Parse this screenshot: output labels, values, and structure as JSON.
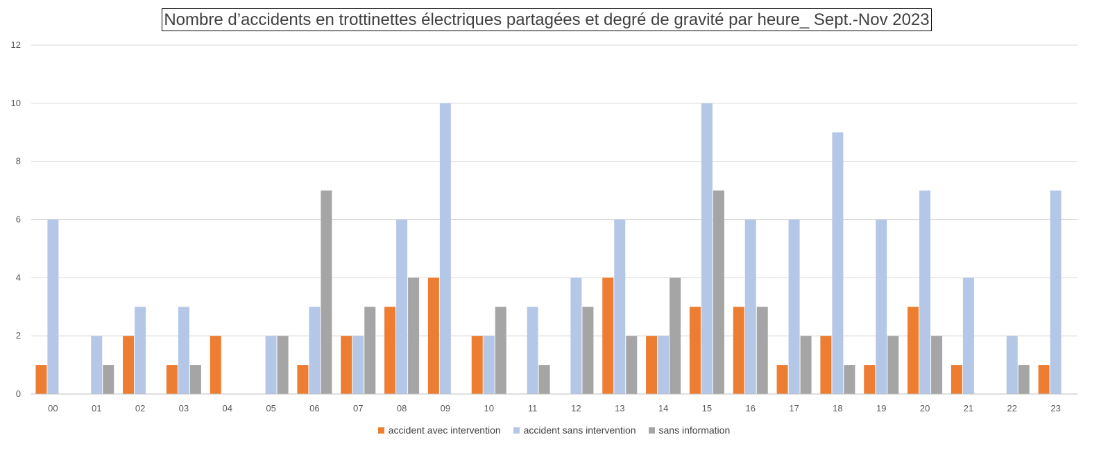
{
  "colors": {
    "avec": "#ED7D31",
    "sans": "#B4C7E7",
    "info": "#A5A5A5",
    "grid": "#D9D9D9",
    "axis": "#BFBFBF",
    "text": "#595959"
  },
  "chart_data": {
    "type": "bar",
    "title": "Nombre d’accidents en trottinettes électriques partagées et degré de gravité par heure_ Sept.-Nov 2023",
    "categories": [
      "00",
      "01",
      "02",
      "03",
      "04",
      "05",
      "06",
      "07",
      "08",
      "09",
      "10",
      "11",
      "12",
      "13",
      "14",
      "15",
      "16",
      "17",
      "18",
      "19",
      "20",
      "21",
      "22",
      "23"
    ],
    "ylim": [
      0,
      12
    ],
    "yticks": [
      "0",
      "2",
      "4",
      "6",
      "8",
      "10",
      "12"
    ],
    "grid": true,
    "legend_position": "bottom",
    "series": [
      {
        "name": "accident avec intervention",
        "color_key": "avec",
        "values": [
          1,
          0,
          2,
          1,
          2,
          0,
          1,
          2,
          3,
          4,
          2,
          0,
          0,
          4,
          2,
          3,
          3,
          1,
          2,
          1,
          3,
          1,
          0,
          1
        ]
      },
      {
        "name": "accident sans intervention",
        "color_key": "sans",
        "values": [
          6,
          2,
          3,
          3,
          0,
          2,
          3,
          2,
          6,
          10,
          2,
          3,
          4,
          6,
          2,
          10,
          6,
          6,
          9,
          6,
          7,
          4,
          2,
          7
        ]
      },
      {
        "name": "sans information",
        "color_key": "info",
        "values": [
          0,
          1,
          0,
          1,
          0,
          2,
          7,
          3,
          4,
          0,
          3,
          1,
          3,
          2,
          4,
          7,
          3,
          2,
          1,
          2,
          2,
          0,
          1,
          0
        ]
      }
    ]
  }
}
